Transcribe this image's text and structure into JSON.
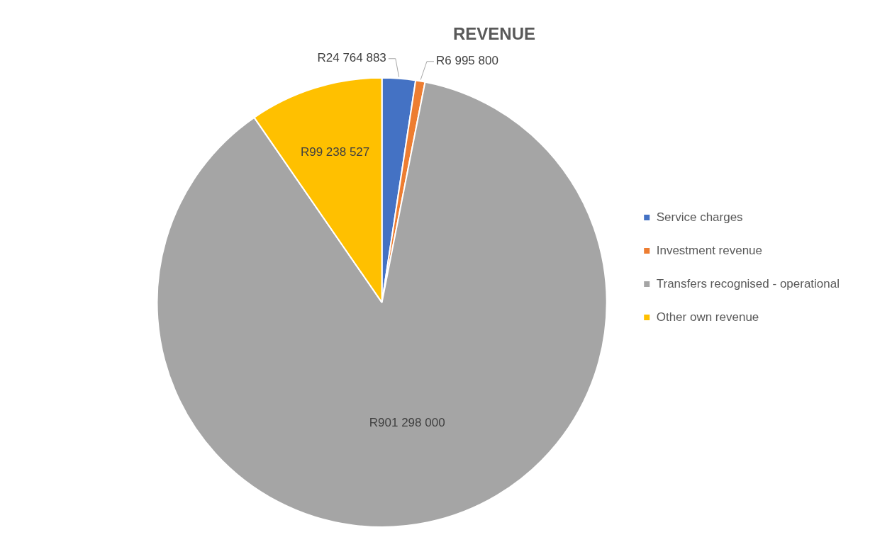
{
  "chart_data": {
    "type": "pie",
    "title": "REVENUE",
    "categories": [
      "Service charges",
      "Investment revenue",
      "Transfers recognised - operational",
      "Other own revenue"
    ],
    "values": [
      24764883,
      6995800,
      901298000,
      99238527
    ],
    "value_labels": [
      "R24 764 883",
      "R6 995 800",
      "R901 298 000",
      "R99 238 527"
    ],
    "colors": [
      "#4472c4",
      "#ed7d31",
      "#a5a5a5",
      "#ffc000"
    ],
    "legend": "right"
  }
}
